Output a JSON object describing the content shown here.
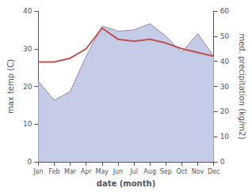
{
  "chart_data": {
    "type": "line",
    "xlabel": "date (month)",
    "ylabel": "max temp (C)",
    "y2label": "med. precipitation (kg/m2)",
    "categories": [
      "Jan",
      "Feb",
      "Mar",
      "Apr",
      "May",
      "Jun",
      "Jul",
      "Aug",
      "Sep",
      "Oct",
      "Nov",
      "Dec"
    ],
    "series": [
      {
        "type": "area",
        "axis": "y2",
        "color": "#c5cce8",
        "values": [
          32.0,
          24.5,
          28.0,
          42.0,
          54.0,
          52.0,
          52.5,
          55.0,
          50.0,
          43.5,
          51.0,
          42.0
        ]
      },
      {
        "type": "line",
        "axis": "y2",
        "color": "#9e86a8",
        "values": [
          32.0,
          24.5,
          28.0,
          42.0,
          54.0,
          52.0,
          52.5,
          55.0,
          50.0,
          43.5,
          51.0,
          42.0
        ]
      },
      {
        "type": "line",
        "color": "#c0504d",
        "values": [
          26.5,
          26.5,
          27.5,
          30.0,
          35.5,
          32.5,
          32.0,
          32.5,
          31.5,
          30.0,
          29.0,
          28.0
        ]
      }
    ],
    "ylim": [
      0,
      40
    ],
    "yticks": [
      0,
      10,
      20,
      30,
      40
    ],
    "y2lim": [
      0,
      60
    ],
    "y2ticks": [
      0,
      10,
      20,
      30,
      40,
      50,
      60
    ],
    "grid": false
  }
}
